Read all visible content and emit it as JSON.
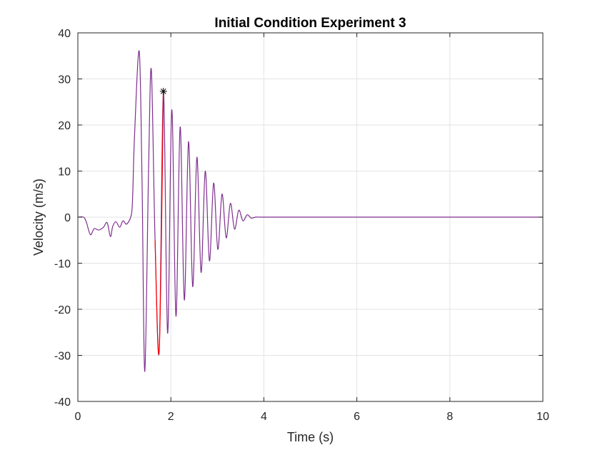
{
  "chart_data": {
    "type": "line",
    "title": "Initial Condition Experiment 3",
    "xlabel": "Time (s)",
    "ylabel": "Velocity (m/s)",
    "xlim": [
      0,
      10
    ],
    "ylim": [
      -40,
      40
    ],
    "xticks": [
      0,
      2,
      4,
      6,
      8,
      10
    ],
    "xtick_labels": [
      "0",
      "2",
      "4",
      "6",
      "8",
      "10"
    ],
    "yticks": [
      -40,
      -30,
      -20,
      -10,
      0,
      10,
      20,
      30,
      40
    ],
    "ytick_labels": [
      "-40",
      "-30",
      "-20",
      "-10",
      "0",
      "10",
      "20",
      "30",
      "40"
    ],
    "grid": true,
    "colors": {
      "main": "#7E2F8E",
      "highlight": "#FF0000",
      "marker": "#000000",
      "grid": "#e3e3e3",
      "axes": "#262626"
    },
    "series": [
      {
        "color": "#7E2F8E",
        "x": [
          0,
          0.12,
          0.18,
          0.27,
          0.35,
          0.45,
          0.55,
          0.63,
          0.7,
          0.75,
          0.82,
          0.9,
          0.97,
          1.05,
          1.15,
          1.18,
          1.22,
          1.32,
          1.38,
          1.44,
          1.52,
          1.58,
          1.66,
          1.75,
          1.84,
          1.93,
          2.02,
          2.11,
          2.2,
          2.29,
          2.38,
          2.47,
          2.56,
          2.65,
          2.74,
          2.83,
          2.92,
          3.01,
          3.1,
          3.19,
          3.28,
          3.37,
          3.46,
          3.55,
          3.64,
          3.73,
          3.82,
          3.91,
          4.0,
          4.09,
          4.18,
          4.27,
          4.36,
          4.45,
          4.54,
          4.63,
          4.7,
          4.8,
          6,
          8,
          10
        ],
        "y": [
          0,
          0,
          -1,
          -3.8,
          -2.5,
          -2.8,
          -2.2,
          -1.2,
          -4.2,
          -2.0,
          -1.0,
          -2.2,
          -0.8,
          -1.5,
          0.5,
          5,
          18,
          36,
          8,
          -33.5,
          10,
          32,
          -5,
          -29,
          27.3,
          -25.2,
          23.3,
          -21.5,
          19.6,
          -18.0,
          16.4,
          -15.1,
          13.0,
          -12.0,
          10.0,
          -9.5,
          7.4,
          -7.0,
          5.0,
          -4.5,
          3.0,
          -2.6,
          1.5,
          -0.8,
          0.5,
          -0.2,
          0,
          0,
          0,
          0,
          0,
          0,
          0,
          0,
          0,
          0,
          0,
          0,
          0,
          0,
          0
        ]
      },
      {
        "color": "#FF0000",
        "x": [
          1.66,
          1.75,
          1.84
        ],
        "y": [
          -5,
          -29,
          27.3
        ]
      }
    ],
    "annotations": [
      {
        "type": "marker",
        "symbol": "*",
        "x": 1.84,
        "y": 27.3,
        "color": "#000000"
      }
    ]
  }
}
